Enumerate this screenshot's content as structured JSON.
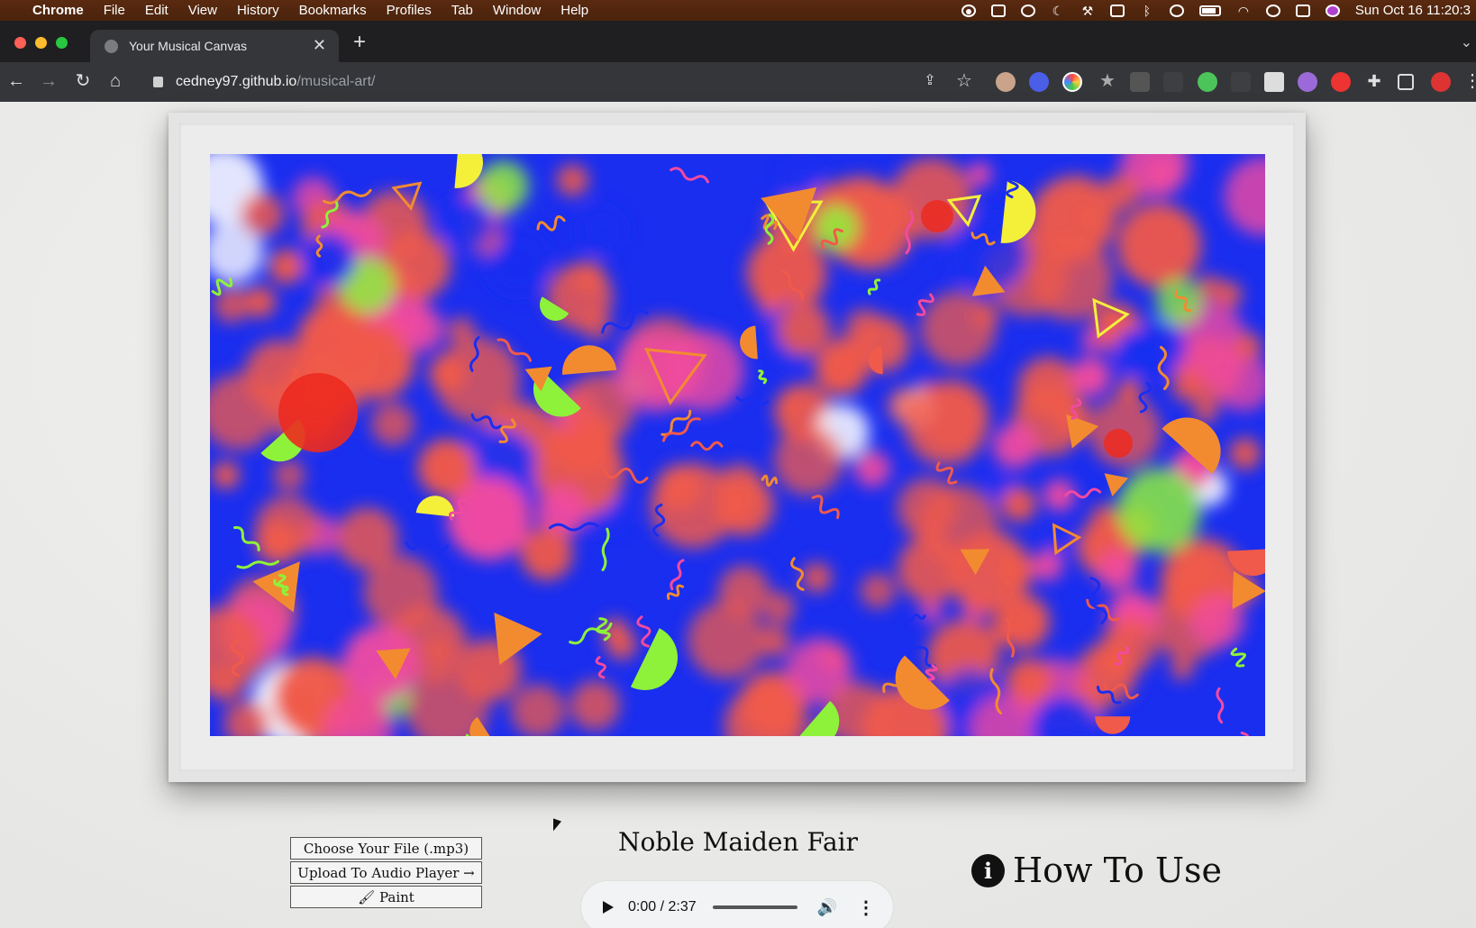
{
  "menubar": {
    "app": "Chrome",
    "items": [
      "File",
      "Edit",
      "View",
      "History",
      "Bookmarks",
      "Profiles",
      "Tab",
      "Window",
      "Help"
    ],
    "clock": "Sun Oct 16  11:20:3"
  },
  "browser": {
    "tab_title": "Your Musical Canvas",
    "url_host": "cedney97.github.io",
    "url_path": "/musical-art/"
  },
  "controls": {
    "choose_file": "Choose Your File (.mp3)",
    "upload": "Upload To Audio Player →",
    "paint": "Paint",
    "paint_icon": "paintbrush-icon"
  },
  "song": {
    "title": "Noble Maiden Fair"
  },
  "player": {
    "time": "0:00 / 2:37",
    "progress": 0
  },
  "help": {
    "label": "How To Use",
    "icon": "info-icon"
  },
  "colors": {
    "blue": "#1a2ef0",
    "coral": "#f05a4a",
    "orange": "#f28b30",
    "green": "#8ef23a",
    "yellow": "#f4f03a",
    "red": "#ec2a20",
    "pink": "#f24aa0",
    "menubar": "#4e250d"
  }
}
